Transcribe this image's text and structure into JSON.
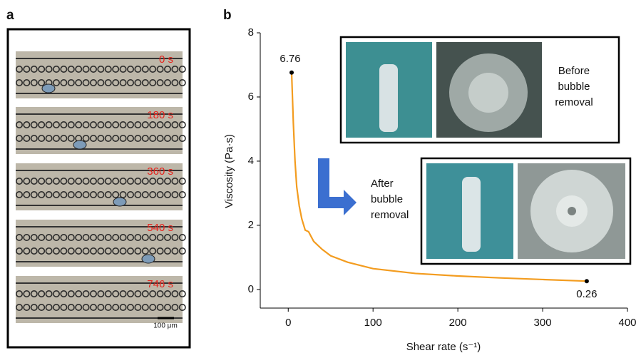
{
  "panel_labels": [
    "a",
    "b"
  ],
  "micrographs": {
    "times": [
      "0 s",
      "180 s",
      "360 s",
      "540 s",
      "746 s"
    ],
    "scale_bar": "100 μm"
  },
  "insets": {
    "before": [
      "Before",
      "bubble",
      "removal"
    ],
    "after": [
      "After",
      "bubble",
      "removal"
    ]
  },
  "chart_data": {
    "type": "line",
    "x_label": "Shear rate (s⁻¹)",
    "y_label": "Viscosity (Pa·s)",
    "x": [
      4,
      6,
      8,
      10,
      13,
      16,
      20,
      24,
      30,
      40,
      50,
      70,
      100,
      150,
      200,
      250,
      300,
      352
    ],
    "series": [
      {
        "color": "#f39c1f",
        "values": [
          6.76,
          5.2,
          4.0,
          3.2,
          2.6,
          2.2,
          1.85,
          1.8,
          1.5,
          1.25,
          1.05,
          0.85,
          0.65,
          0.5,
          0.42,
          0.36,
          0.31,
          0.26
        ]
      }
    ],
    "xlim": [
      -33,
      400
    ],
    "ylim": [
      -0.58,
      8
    ],
    "xticks": [
      0,
      100,
      200,
      300,
      400
    ],
    "yticks": [
      0,
      2,
      4,
      6,
      8
    ]
  }
}
